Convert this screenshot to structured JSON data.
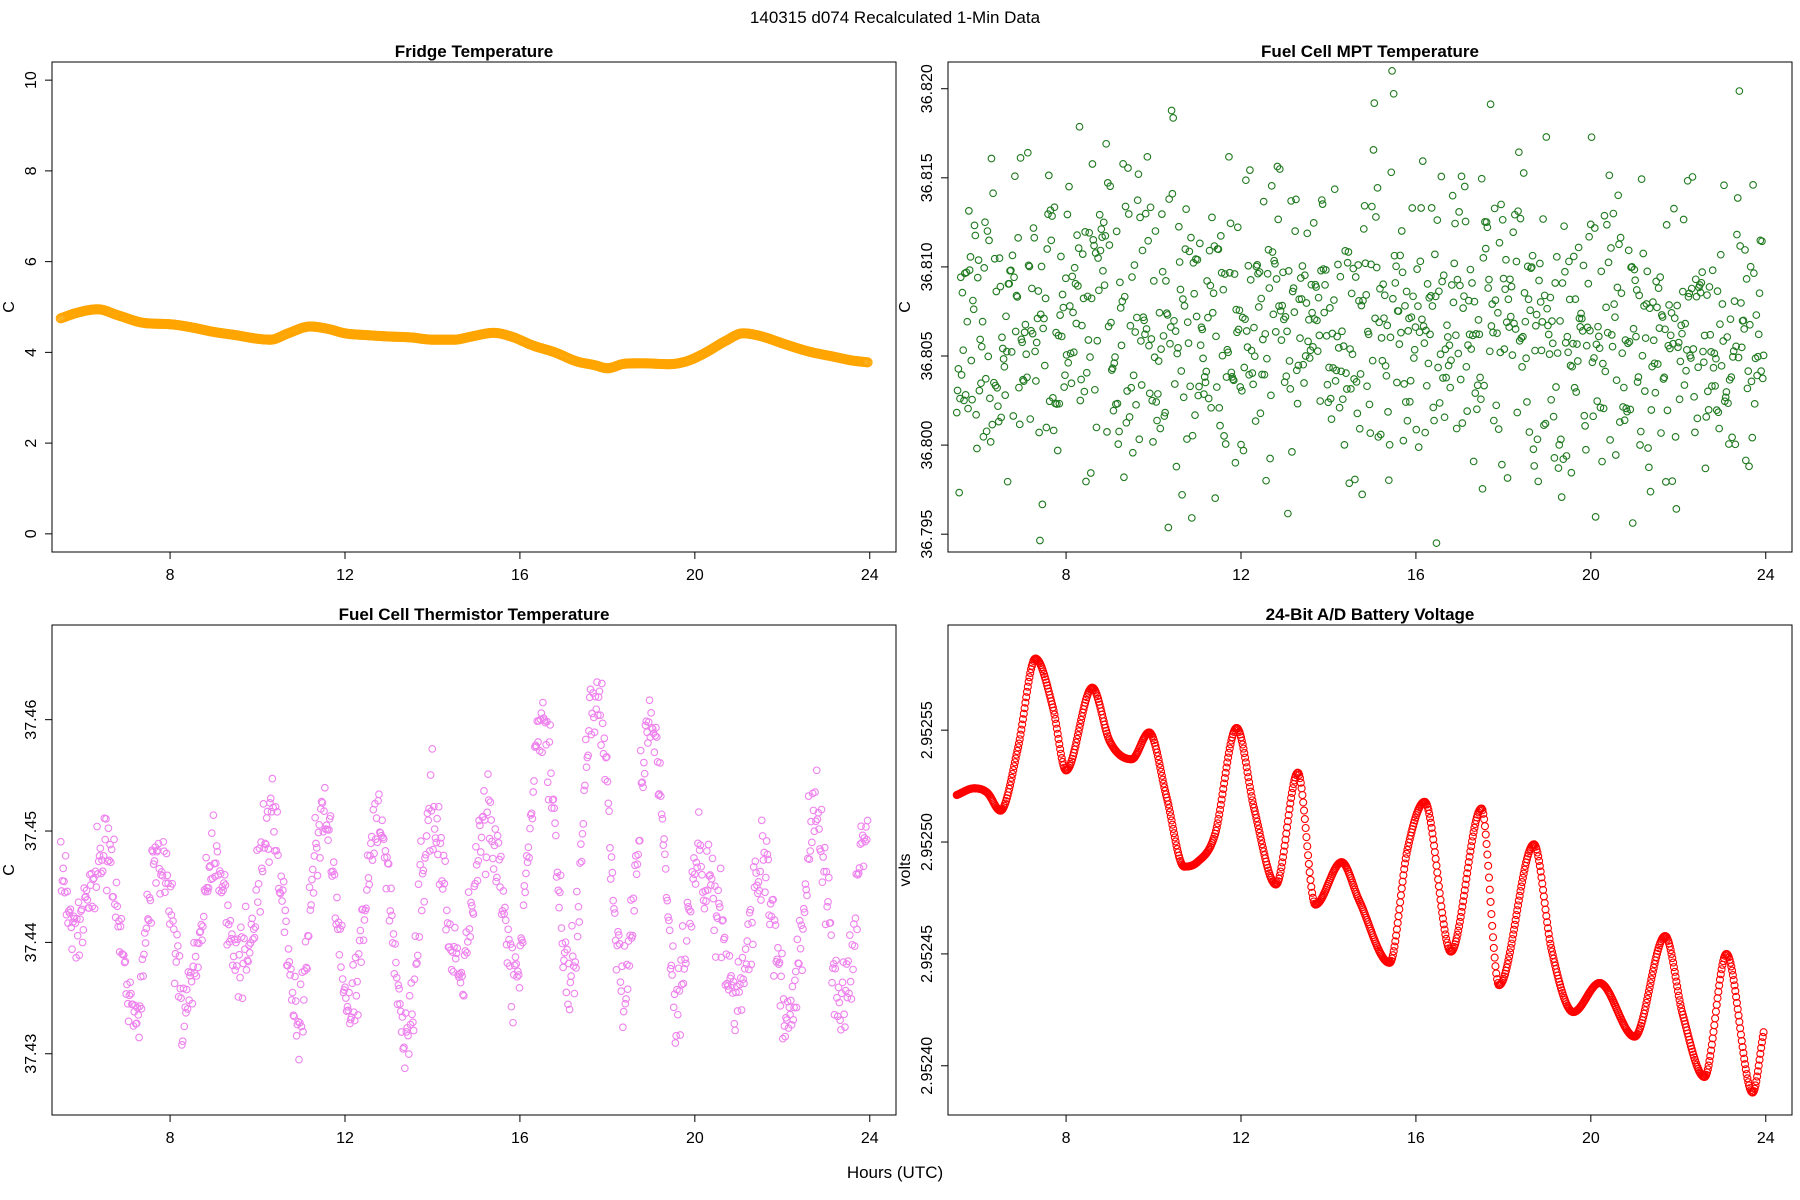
{
  "figure": {
    "suptitle": "140315   d074   Recalculated 1-Min Data",
    "xlabel": "Hours (UTC)"
  },
  "chart_data": [
    {
      "type": "scatter",
      "title": "Fridge Temperature",
      "ylabel": "C",
      "xlabel": "",
      "xlim": [
        5.3,
        24.6
      ],
      "ylim": [
        -0.4,
        10.4
      ],
      "xticks": [
        8,
        12,
        16,
        20,
        24
      ],
      "yticks": [
        0,
        2,
        4,
        6,
        8,
        10
      ],
      "ytick_labels": [
        "0",
        "2",
        "4",
        "6",
        "8",
        "10"
      ],
      "color": "#FFA500",
      "x_start": 5.5,
      "x_end": 23.95,
      "n_points": 700,
      "marker_size": 4.5,
      "shape_points": [
        [
          5.5,
          4.75
        ],
        [
          5.9,
          4.88
        ],
        [
          6.35,
          4.95
        ],
        [
          6.8,
          4.82
        ],
        [
          7.4,
          4.65
        ],
        [
          8.0,
          4.62
        ],
        [
          8.5,
          4.55
        ],
        [
          9.0,
          4.45
        ],
        [
          9.5,
          4.38
        ],
        [
          10.0,
          4.3
        ],
        [
          10.3,
          4.28
        ],
        [
          10.7,
          4.42
        ],
        [
          11.2,
          4.57
        ],
        [
          11.6,
          4.52
        ],
        [
          12.0,
          4.42
        ],
        [
          12.5,
          4.38
        ],
        [
          13.0,
          4.35
        ],
        [
          13.5,
          4.33
        ],
        [
          14.0,
          4.28
        ],
        [
          14.5,
          4.28
        ],
        [
          14.9,
          4.35
        ],
        [
          15.4,
          4.43
        ],
        [
          15.8,
          4.35
        ],
        [
          16.3,
          4.15
        ],
        [
          16.8,
          4.0
        ],
        [
          17.3,
          3.8
        ],
        [
          17.7,
          3.72
        ],
        [
          18.0,
          3.65
        ],
        [
          18.4,
          3.75
        ],
        [
          18.8,
          3.76
        ],
        [
          19.4,
          3.74
        ],
        [
          19.8,
          3.8
        ],
        [
          20.2,
          3.97
        ],
        [
          20.7,
          4.25
        ],
        [
          21.1,
          4.42
        ],
        [
          21.5,
          4.36
        ],
        [
          22.0,
          4.2
        ],
        [
          22.6,
          4.02
        ],
        [
          23.2,
          3.9
        ],
        [
          23.6,
          3.82
        ],
        [
          23.95,
          3.78
        ]
      ]
    },
    {
      "type": "scatter",
      "title": "Fuel Cell MPT Temperature",
      "ylabel": "C",
      "xlabel": "",
      "xlim": [
        5.3,
        24.6
      ],
      "ylim": [
        36.794,
        36.8215
      ],
      "xticks": [
        8,
        12,
        16,
        20,
        24
      ],
      "yticks": [
        36.795,
        36.8,
        36.805,
        36.81,
        36.815,
        36.82
      ],
      "ytick_labels": [
        "36.795",
        "36.800",
        "36.805",
        "36.810",
        "36.815",
        "36.820"
      ],
      "color": "#1f7a1f",
      "x_start": 5.5,
      "x_end": 23.95,
      "n_points": 1000,
      "marker_size": 3.3,
      "y_mean": 36.8066,
      "y_noise_sd": 0.0042,
      "y_min": 36.7945,
      "y_max": 36.821,
      "seed": 11
    },
    {
      "type": "scatter",
      "title": "Fuel Cell Thermistor Temperature",
      "ylabel": "C",
      "xlabel": "",
      "xlim": [
        5.3,
        24.6
      ],
      "ylim": [
        37.4245,
        37.4685
      ],
      "xticks": [
        8,
        12,
        16,
        20,
        24
      ],
      "yticks": [
        37.43,
        37.44,
        37.45,
        37.46
      ],
      "ytick_labels": [
        "37.43",
        "37.44",
        "37.45",
        "37.46"
      ],
      "color": "#ee82ee",
      "x_start": 5.5,
      "x_end": 23.95,
      "n_points": 1000,
      "marker_size": 3.3,
      "wave_period_hours": 1.25,
      "wave_phase": 0.3,
      "y_noise_sd": 0.0018,
      "y_min": 37.4255,
      "y_max": 37.4675,
      "seed": 23,
      "shape_points": [
        [
          5.5,
          37.4445,
          0.003
        ],
        [
          6.5,
          37.4445,
          0.0035
        ],
        [
          7.2,
          37.44,
          0.008
        ],
        [
          8.3,
          37.4415,
          0.007
        ],
        [
          9.5,
          37.4425,
          0.0055
        ],
        [
          10.5,
          37.4435,
          0.0085
        ],
        [
          11.4,
          37.4415,
          0.0095
        ],
        [
          12.5,
          37.4425,
          0.0085
        ],
        [
          13.5,
          37.4415,
          0.0095
        ],
        [
          14.5,
          37.444,
          0.0075
        ],
        [
          15.5,
          37.4445,
          0.0065
        ],
        [
          16.5,
          37.4485,
          0.011
        ],
        [
          17.5,
          37.4495,
          0.0125
        ],
        [
          18.5,
          37.4485,
          0.012
        ],
        [
          19.5,
          37.4465,
          0.0115
        ],
        [
          20.3,
          37.442,
          0.004
        ],
        [
          21.2,
          37.4395,
          0.0055
        ],
        [
          22.2,
          37.4415,
          0.0085
        ],
        [
          23.2,
          37.4425,
          0.0095
        ],
        [
          23.95,
          37.443,
          0.009
        ]
      ]
    },
    {
      "type": "scatter",
      "title": "24-Bit A/D Battery Voltage",
      "ylabel": "volts",
      "xlabel": "",
      "xlim": [
        5.3,
        24.6
      ],
      "ylim": [
        2.952378,
        2.952597
      ],
      "xticks": [
        8,
        12,
        16,
        20,
        24
      ],
      "yticks": [
        2.9524,
        2.95245,
        2.9525,
        2.95255
      ],
      "ytick_labels": [
        "2.95240",
        "2.95245",
        "2.95250",
        "2.95255"
      ],
      "color": "#ff0000",
      "x_start": 5.5,
      "x_end": 23.95,
      "n_points": 1000,
      "marker_size": 3.5,
      "shape_points": [
        [
          5.5,
          2.952521
        ],
        [
          5.9,
          2.952524
        ],
        [
          6.2,
          2.952522
        ],
        [
          6.5,
          2.952514
        ],
        [
          6.9,
          2.952542
        ],
        [
          7.3,
          2.952582
        ],
        [
          7.7,
          2.95256
        ],
        [
          8.0,
          2.952532
        ],
        [
          8.6,
          2.952569
        ],
        [
          9.0,
          2.952545
        ],
        [
          9.5,
          2.952537
        ],
        [
          9.9,
          2.952549
        ],
        [
          10.3,
          2.95252
        ],
        [
          10.7,
          2.952489
        ],
        [
          11.0,
          2.952491
        ],
        [
          11.4,
          2.952503
        ],
        [
          11.9,
          2.952551
        ],
        [
          12.3,
          2.952515
        ],
        [
          12.8,
          2.952481
        ],
        [
          13.3,
          2.952531
        ],
        [
          13.7,
          2.952472
        ],
        [
          14.3,
          2.952491
        ],
        [
          14.7,
          2.952474
        ],
        [
          15.4,
          2.952446
        ],
        [
          15.8,
          2.952496
        ],
        [
          16.2,
          2.952518
        ],
        [
          16.8,
          2.952451
        ],
        [
          17.5,
          2.952515
        ],
        [
          17.9,
          2.952436
        ],
        [
          18.7,
          2.952499
        ],
        [
          19.1,
          2.952452
        ],
        [
          19.6,
          2.952424
        ],
        [
          20.2,
          2.952437
        ],
        [
          21.0,
          2.952413
        ],
        [
          21.7,
          2.952458
        ],
        [
          22.1,
          2.952423
        ],
        [
          22.6,
          2.952395
        ],
        [
          23.1,
          2.95245
        ],
        [
          23.7,
          2.952388
        ],
        [
          23.95,
          2.952415
        ]
      ]
    }
  ]
}
